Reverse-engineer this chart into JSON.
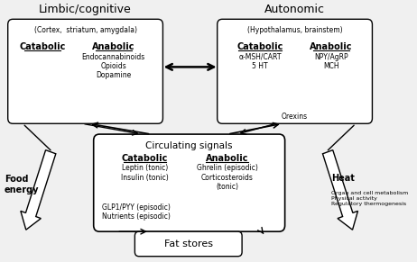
{
  "bg_color": "#f0f0f0",
  "box_bg": "white",
  "title_limbic": "Limbic/cognitive",
  "title_autonomic": "Autonomic",
  "limbic_subtitle": "(Cortex,  striatum, amygdala)",
  "limbic_catabolic_label": "Catabolic",
  "limbic_anabolic_label": "Anabolic",
  "limbic_anabolic_items": "Endocannabinoids\nOpioids\nDopamine",
  "autonomic_subtitle": "(Hypothalamus, brainstem)",
  "autonomic_catabolic_label": "Catabolic",
  "autonomic_anabolic_label": "Anabolic",
  "autonomic_catabolic_items": "α-MSH/CART\n5 HT",
  "autonomic_anabolic_items": "NPY/AgRP\nMCH",
  "autonomic_bottom": "Orexins",
  "circ_title": "Circulating signals",
  "circ_catabolic_label": "Catabolic",
  "circ_anabolic_label": "Anabolic",
  "circ_catabolic_items": "Leptin (tonic)\nInsulin (tonic)",
  "circ_anabolic_items": "Ghrelin (episodic)\nCorticosteroids\n(tonic)",
  "circ_bottom": "GLP1/PYY (episodic)\nNutrients (episodic)",
  "fat_label": "Fat stores",
  "food_label": "Food\nenergy",
  "heat_label": "Heat",
  "heat_items": "Organ and cell metabolism\nPhysical activity\nRegulatory thermogenesis"
}
